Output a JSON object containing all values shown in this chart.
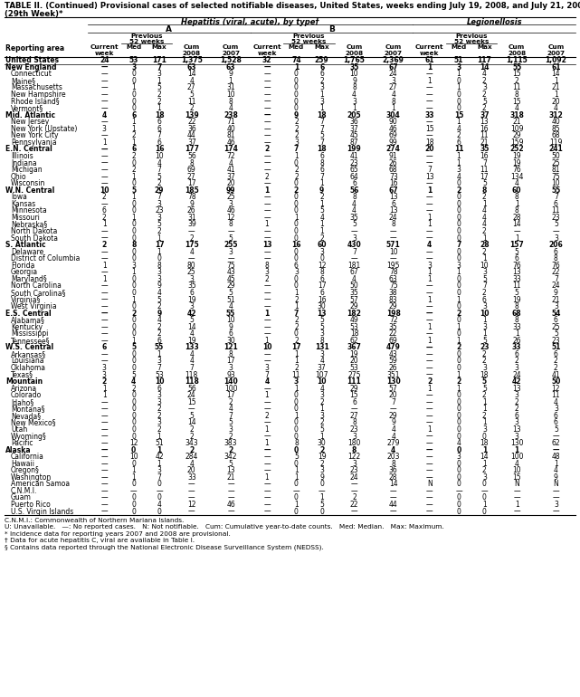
{
  "title_line1": "TABLE II. (Continued) Provisional cases of selected notifiable diseases, United States, weeks ending July 19, 2008, and July 21, 2007",
  "title_line2": "(29th Week)*",
  "group_header": "Hepatitis (viral, acute), by type†",
  "subgroup_A": "A",
  "subgroup_B": "B",
  "subgroup_C": "Legionellosis",
  "reporting_area_label": "Reporting area",
  "rows": [
    [
      "United States",
      "24",
      "53",
      "171",
      "1,375",
      "1,528",
      "32",
      "74",
      "259",
      "1,765",
      "2,369",
      "61",
      "51",
      "117",
      "1,115",
      "1,092"
    ],
    [
      "New England",
      "—",
      "3",
      "7",
      "63",
      "63",
      "—",
      "1",
      "6",
      "35",
      "67",
      "1",
      "3",
      "14",
      "55",
      "61"
    ],
    [
      "Connecticut",
      "—",
      "0",
      "3",
      "14",
      "9",
      "—",
      "0",
      "6",
      "10",
      "24",
      "—",
      "1",
      "4",
      "15",
      "14"
    ],
    [
      "Maine§",
      "—",
      "0",
      "1",
      "4",
      "1",
      "—",
      "0",
      "2",
      "9",
      "3",
      "1",
      "0",
      "2",
      "2",
      "1"
    ],
    [
      "Massachusetts",
      "—",
      "1",
      "5",
      "27",
      "31",
      "—",
      "0",
      "3",
      "8",
      "27",
      "—",
      "1",
      "3",
      "11",
      "21"
    ],
    [
      "New Hampshire",
      "—",
      "0",
      "2",
      "5",
      "10",
      "—",
      "0",
      "1",
      "4",
      "4",
      "—",
      "0",
      "2",
      "8",
      "1"
    ],
    [
      "Rhode Island§",
      "—",
      "0",
      "2",
      "11",
      "8",
      "—",
      "0",
      "3",
      "3",
      "8",
      "—",
      "0",
      "5",
      "15",
      "20"
    ],
    [
      "Vermont§",
      "—",
      "0",
      "1",
      "2",
      "4",
      "—",
      "0",
      "1",
      "1",
      "1",
      "—",
      "0",
      "2",
      "4",
      "4"
    ],
    [
      "Mid. Atlantic",
      "4",
      "6",
      "18",
      "139",
      "238",
      "—",
      "9",
      "18",
      "205",
      "304",
      "33",
      "15",
      "37",
      "318",
      "312"
    ],
    [
      "New Jersey",
      "—",
      "1",
      "6",
      "22",
      "71",
      "—",
      "2",
      "7",
      "36",
      "90",
      "—",
      "1",
      "13",
      "21",
      "40"
    ],
    [
      "New York (Upstate)",
      "3",
      "1",
      "6",
      "36",
      "40",
      "—",
      "2",
      "7",
      "37",
      "46",
      "15",
      "4",
      "16",
      "109",
      "85"
    ],
    [
      "New York City",
      "—",
      "2",
      "7",
      "44",
      "81",
      "—",
      "2",
      "5",
      "45",
      "69",
      "—",
      "2",
      "11",
      "29",
      "68"
    ],
    [
      "Pennsylvania",
      "1",
      "1",
      "6",
      "37",
      "46",
      "—",
      "3",
      "7",
      "87",
      "99",
      "18",
      "6",
      "21",
      "159",
      "119"
    ],
    [
      "E.N. Central",
      "—",
      "6",
      "16",
      "177",
      "174",
      "2",
      "7",
      "18",
      "199",
      "274",
      "20",
      "11",
      "35",
      "252",
      "241"
    ],
    [
      "Illinois",
      "—",
      "2",
      "10",
      "56",
      "72",
      "—",
      "1",
      "6",
      "41",
      "91",
      "—",
      "1",
      "16",
      "19",
      "50"
    ],
    [
      "Indiana",
      "—",
      "0",
      "4",
      "8",
      "4",
      "—",
      "0",
      "8",
      "23",
      "26",
      "—",
      "1",
      "7",
      "19",
      "25"
    ],
    [
      "Michigan",
      "—",
      "2",
      "7",
      "69",
      "41",
      "—",
      "2",
      "6",
      "65",
      "68",
      "7",
      "3",
      "11",
      "76",
      "81"
    ],
    [
      "Ohio",
      "—",
      "1",
      "5",
      "27",
      "37",
      "2",
      "2",
      "7",
      "64",
      "73",
      "13",
      "4",
      "17",
      "134",
      "75"
    ],
    [
      "Wisconsin",
      "—",
      "0",
      "2",
      "17",
      "20",
      "—",
      "0",
      "1",
      "6",
      "16",
      "—",
      "0",
      "5",
      "4",
      "10"
    ],
    [
      "W.N. Central",
      "10",
      "5",
      "29",
      "185",
      "99",
      "1",
      "2",
      "9",
      "56",
      "67",
      "1",
      "2",
      "8",
      "60",
      "55"
    ],
    [
      "Iowa",
      "2",
      "1",
      "7",
      "78",
      "25",
      "—",
      "0",
      "2",
      "8",
      "13",
      "—",
      "0",
      "2",
      "8",
      "7"
    ],
    [
      "Kansas",
      "—",
      "0",
      "3",
      "9",
      "3",
      "—",
      "0",
      "1",
      "4",
      "6",
      "—",
      "0",
      "1",
      "1",
      "6"
    ],
    [
      "Minnesota",
      "6",
      "0",
      "23",
      "26",
      "46",
      "—",
      "0",
      "5",
      "4",
      "13",
      "—",
      "0",
      "4",
      "8",
      "11"
    ],
    [
      "Missouri",
      "2",
      "1",
      "3",
      "31",
      "12",
      "—",
      "1",
      "4",
      "35",
      "24",
      "1",
      "0",
      "4",
      "28",
      "23"
    ],
    [
      "Nebraska§",
      "1",
      "0",
      "5",
      "39",
      "8",
      "1",
      "0",
      "1",
      "5",
      "8",
      "1",
      "0",
      "4",
      "14",
      "5"
    ],
    [
      "North Dakota",
      "—",
      "0",
      "2",
      "—",
      "—",
      "—",
      "0",
      "1",
      "—",
      "—",
      "—",
      "0",
      "2",
      "—",
      "—"
    ],
    [
      "South Dakota",
      "—",
      "0",
      "1",
      "2",
      "5",
      "—",
      "0",
      "2",
      "3",
      "—",
      "—",
      "0",
      "1",
      "1",
      "3"
    ],
    [
      "S. Atlantic",
      "2",
      "8",
      "17",
      "175",
      "255",
      "13",
      "16",
      "60",
      "430",
      "571",
      "4",
      "7",
      "28",
      "157",
      "206"
    ],
    [
      "Delaware",
      "—",
      "0",
      "1",
      "4",
      "3",
      "—",
      "0",
      "3",
      "7",
      "10",
      "—",
      "0",
      "2",
      "5",
      "6"
    ],
    [
      "District of Columbia",
      "—",
      "0",
      "0",
      "—",
      "—",
      "—",
      "0",
      "0",
      "—",
      "—",
      "—",
      "0",
      "1",
      "6",
      "8"
    ],
    [
      "Florida",
      "1",
      "3",
      "8",
      "80",
      "75",
      "8",
      "6",
      "12",
      "181",
      "195",
      "3",
      "3",
      "10",
      "76",
      "76"
    ],
    [
      "Georgia",
      "—",
      "1",
      "3",
      "25",
      "43",
      "3",
      "3",
      "8",
      "67",
      "78",
      "1",
      "1",
      "3",
      "13",
      "22"
    ],
    [
      "Maryland§",
      "1",
      "0",
      "3",
      "3",
      "45",
      "2",
      "0",
      "6",
      "4",
      "63",
      "1",
      "0",
      "5",
      "33",
      "7"
    ],
    [
      "North Carolina",
      "—",
      "0",
      "9",
      "35",
      "29",
      "—",
      "0",
      "17",
      "50",
      "75",
      "—",
      "0",
      "7",
      "11",
      "24"
    ],
    [
      "South Carolina§",
      "—",
      "0",
      "4",
      "6",
      "5",
      "—",
      "1",
      "6",
      "35",
      "38",
      "—",
      "0",
      "2",
      "5",
      "9"
    ],
    [
      "Virginia§",
      "—",
      "1",
      "5",
      "19",
      "51",
      "—",
      "2",
      "16",
      "57",
      "83",
      "1",
      "1",
      "6",
      "19",
      "21"
    ],
    [
      "West Virginia",
      "—",
      "0",
      "2",
      "3",
      "4",
      "—",
      "1",
      "30",
      "29",
      "29",
      "—",
      "0",
      "3",
      "8",
      "3"
    ],
    [
      "E.S. Central",
      "—",
      "2",
      "9",
      "42",
      "55",
      "1",
      "7",
      "13",
      "182",
      "198",
      "—",
      "2",
      "10",
      "68",
      "54"
    ],
    [
      "Alabama§",
      "—",
      "0",
      "4",
      "5",
      "10",
      "—",
      "2",
      "5",
      "49",
      "72",
      "—",
      "0",
      "1",
      "8",
      "6"
    ],
    [
      "Kentucky",
      "—",
      "0",
      "2",
      "14",
      "9",
      "—",
      "2",
      "5",
      "53",
      "35",
      "1",
      "1",
      "3",
      "33",
      "25"
    ],
    [
      "Mississippi",
      "—",
      "0",
      "2",
      "4",
      "6",
      "—",
      "0",
      "3",
      "18",
      "22",
      "—",
      "0",
      "1",
      "1",
      "5"
    ],
    [
      "Tennessee§",
      "—",
      "1",
      "6",
      "19",
      "30",
      "1",
      "2",
      "8",
      "62",
      "69",
      "1",
      "1",
      "5",
      "26",
      "23"
    ],
    [
      "W.S. Central",
      "6",
      "5",
      "55",
      "133",
      "121",
      "10",
      "17",
      "131",
      "367",
      "479",
      "—",
      "2",
      "23",
      "33",
      "51"
    ],
    [
      "Arkansas§",
      "—",
      "0",
      "1",
      "4",
      "8",
      "—",
      "1",
      "3",
      "19",
      "43",
      "—",
      "0",
      "2",
      "6",
      "6"
    ],
    [
      "Louisiana",
      "—",
      "0",
      "3",
      "4",
      "17",
      "—",
      "1",
      "4",
      "20",
      "59",
      "—",
      "0",
      "2",
      "2",
      "2"
    ],
    [
      "Oklahoma",
      "3",
      "0",
      "7",
      "7",
      "3",
      "3",
      "2",
      "37",
      "53",
      "26",
      "—",
      "0",
      "3",
      "3",
      "2"
    ],
    [
      "Texas§",
      "3",
      "5",
      "53",
      "118",
      "93",
      "7",
      "11",
      "107",
      "275",
      "351",
      "—",
      "1",
      "18",
      "24",
      "41"
    ],
    [
      "Mountain",
      "2",
      "4",
      "10",
      "118",
      "140",
      "4",
      "3",
      "10",
      "111",
      "130",
      "2",
      "2",
      "5",
      "42",
      "50"
    ],
    [
      "Arizona",
      "1",
      "2",
      "6",
      "56",
      "100",
      "—",
      "1",
      "4",
      "29",
      "57",
      "1",
      "1",
      "5",
      "13",
      "12"
    ],
    [
      "Colorado",
      "1",
      "0",
      "3",
      "24",
      "17",
      "1",
      "0",
      "3",
      "15",
      "20",
      "—",
      "0",
      "2",
      "3",
      "11"
    ],
    [
      "Idaho§",
      "—",
      "0",
      "3",
      "15",
      "2",
      "—",
      "0",
      "2",
      "6",
      "7",
      "—",
      "0",
      "1",
      "2",
      "4"
    ],
    [
      "Montana§",
      "—",
      "0",
      "2",
      "—",
      "4",
      "—",
      "0",
      "1",
      "—",
      "—",
      "—",
      "0",
      "1",
      "2",
      "3"
    ],
    [
      "Nevada§",
      "—",
      "0",
      "2",
      "5",
      "7",
      "2",
      "1",
      "3",
      "27",
      "29",
      "—",
      "0",
      "2",
      "6",
      "6"
    ],
    [
      "New Mexico§",
      "—",
      "0",
      "3",
      "14",
      "5",
      "—",
      "0",
      "2",
      "8",
      "9",
      "—",
      "0",
      "1",
      "3",
      "6"
    ],
    [
      "Utah",
      "—",
      "0",
      "2",
      "2",
      "3",
      "1",
      "0",
      "5",
      "23",
      "4",
      "1",
      "0",
      "3",
      "13",
      "5"
    ],
    [
      "Wyoming§",
      "—",
      "0",
      "1",
      "2",
      "2",
      "—",
      "0",
      "1",
      "3",
      "4",
      "—",
      "0",
      "0",
      "3",
      "—"
    ],
    [
      "Pacific",
      "—",
      "12",
      "51",
      "343",
      "383",
      "1",
      "8",
      "30",
      "180",
      "279",
      "—",
      "4",
      "18",
      "130",
      "62"
    ],
    [
      "Alaska",
      "—",
      "0",
      "1",
      "2",
      "2",
      "—",
      "0",
      "2",
      "8",
      "4",
      "—",
      "0",
      "1",
      "1",
      "—"
    ],
    [
      "California",
      "—",
      "10",
      "42",
      "284",
      "342",
      "—",
      "5",
      "19",
      "122",
      "203",
      "—",
      "3",
      "14",
      "100",
      "48"
    ],
    [
      "Hawaii",
      "—",
      "0",
      "1",
      "4",
      "5",
      "—",
      "0",
      "2",
      "3",
      "8",
      "—",
      "0",
      "1",
      "4",
      "1"
    ],
    [
      "Oregon§",
      "—",
      "1",
      "3",
      "20",
      "13",
      "—",
      "1",
      "3",
      "23",
      "36",
      "—",
      "0",
      "2",
      "10",
      "4"
    ],
    [
      "Washington",
      "—",
      "1",
      "7",
      "33",
      "21",
      "1",
      "1",
      "9",
      "24",
      "28",
      "—",
      "0",
      "3",
      "15",
      "9"
    ],
    [
      "American Samoa",
      "—",
      "0",
      "0",
      "—",
      "—",
      "—",
      "0",
      "0",
      "—",
      "14",
      "N",
      "0",
      "0",
      "N",
      "N"
    ],
    [
      "C.N.M.I.",
      "—",
      "—",
      "—",
      "—",
      "—",
      "—",
      "—",
      "—",
      "—",
      "—",
      "—",
      "—",
      "—",
      "—",
      "—"
    ],
    [
      "Guam",
      "—",
      "0",
      "0",
      "—",
      "—",
      "—",
      "0",
      "1",
      "2",
      "—",
      "—",
      "0",
      "0",
      "—",
      "—"
    ],
    [
      "Puerto Rico",
      "—",
      "0",
      "4",
      "12",
      "46",
      "—",
      "1",
      "5",
      "22",
      "44",
      "—",
      "0",
      "1",
      "1",
      "3"
    ],
    [
      "U.S. Virgin Islands",
      "—",
      "0",
      "0",
      "—",
      "—",
      "—",
      "0",
      "0",
      "—",
      "—",
      "—",
      "0",
      "0",
      "—",
      "—"
    ]
  ],
  "footnotes": [
    "C.N.M.I.: Commonwealth of Northern Mariana Islands.",
    "U: Unavailable.   —: No reported cases.   N: Not notifiable.   Cum: Cumulative year-to-date counts.   Med: Median.   Max: Maximum.",
    "* Incidence data for reporting years 2007 and 2008 are provisional.",
    "† Data for acute hepatitis C, viral are available in Table I.",
    "§ Contains data reported through the National Electronic Disease Surveillance System (NEDSS)."
  ],
  "bold_rows": [
    0,
    1,
    8,
    13,
    19,
    27,
    37,
    42,
    47,
    57
  ],
  "indented_rows": [
    2,
    3,
    4,
    5,
    6,
    7,
    9,
    10,
    11,
    12,
    14,
    15,
    16,
    17,
    18,
    20,
    21,
    22,
    23,
    24,
    25,
    26,
    28,
    29,
    30,
    31,
    32,
    33,
    34,
    35,
    36,
    38,
    39,
    40,
    41,
    43,
    44,
    45,
    46,
    48,
    49,
    50,
    51,
    52,
    53,
    54,
    55,
    56,
    58,
    59,
    60,
    61,
    62,
    63,
    64,
    65,
    66,
    67
  ]
}
